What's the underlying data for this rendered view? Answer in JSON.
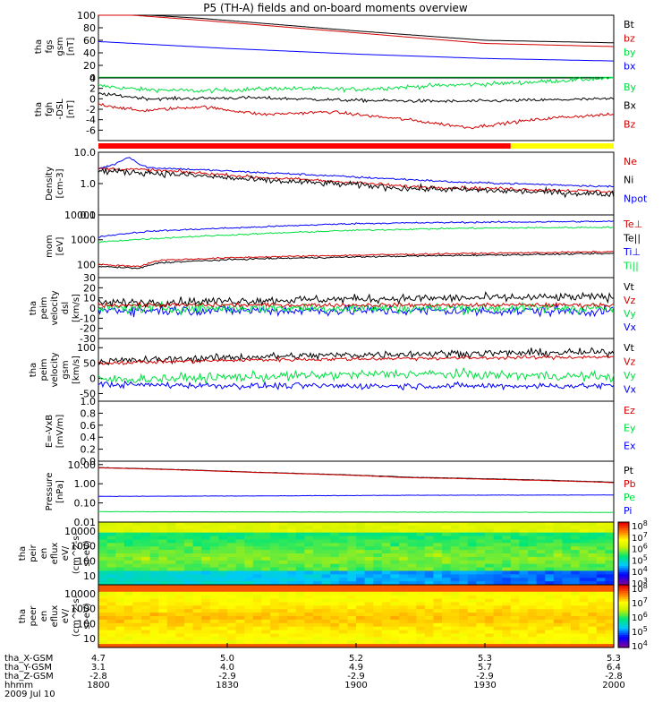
{
  "title": "P5 (TH-A) fields and on-board moments overview",
  "date_label": "2009 Jul 10",
  "colors": {
    "black": "#000000",
    "red": "#d40000",
    "green": "#00e040",
    "blue": "#0000ff",
    "yellow": "#ffff00"
  },
  "chart_data": [
    {
      "id": "fgs",
      "type": "line",
      "ylabel": [
        "tha",
        "fgs",
        "gsm",
        "[nT]"
      ],
      "ylim": [
        0,
        100
      ],
      "ticks": [
        "100",
        "80",
        "60",
        "40",
        "20",
        "0"
      ],
      "tick_values": [
        100,
        80,
        60,
        40,
        20,
        0
      ],
      "legend": [
        {
          "name": "Bt",
          "color": "#000000"
        },
        {
          "name": "bz",
          "color": "#d40000"
        },
        {
          "name": "by",
          "color": "#00e040"
        },
        {
          "name": "bx",
          "color": "#0000ff"
        }
      ],
      "series": [
        {
          "name": "Bt",
          "color": "#000000",
          "x": [
            0,
            0.2,
            0.5,
            0.75,
            1
          ],
          "y": [
            105,
            95,
            75,
            60,
            56
          ],
          "noise": 0
        },
        {
          "name": "bz",
          "color": "#d40000",
          "x": [
            0,
            0.2,
            0.5,
            0.75,
            1
          ],
          "y": [
            104,
            92,
            72,
            55,
            50
          ],
          "noise": 0
        },
        {
          "name": "by",
          "color": "#00e040",
          "x": [
            0,
            1
          ],
          "y": [
            1,
            1
          ],
          "noise": 0
        },
        {
          "name": "bx",
          "color": "#0000ff",
          "x": [
            0,
            0.25,
            0.5,
            0.75,
            1
          ],
          "y": [
            58,
            47,
            38,
            31,
            27
          ],
          "noise": 0
        }
      ]
    },
    {
      "id": "fgh",
      "type": "line",
      "ylabel": [
        "tha",
        "fgh",
        "-DSL",
        "[nT]"
      ],
      "ylim": [
        -8,
        4
      ],
      "ticks": [
        "4",
        "2",
        "0",
        "-2",
        "-4",
        "-6"
      ],
      "tick_values": [
        4,
        2,
        0,
        -2,
        -4,
        -6
      ],
      "legend": [
        {
          "name": "By",
          "color": "#00e040"
        },
        {
          "name": "Bx",
          "color": "#000000"
        },
        {
          "name": "Bz",
          "color": "#d40000"
        }
      ],
      "series": [
        {
          "name": "By",
          "color": "#00e040",
          "x": [
            0,
            0.08,
            0.2,
            0.35,
            0.5,
            0.65,
            0.8,
            1
          ],
          "y": [
            2.5,
            1.8,
            1.5,
            2.0,
            1.8,
            2.5,
            3.0,
            4.0
          ],
          "noise": 0.4
        },
        {
          "name": "Bx",
          "color": "#000000",
          "x": [
            0,
            0.1,
            0.3,
            0.5,
            0.7,
            1
          ],
          "y": [
            1.0,
            0.0,
            0.2,
            -0.3,
            -0.5,
            0.0
          ],
          "noise": 0.3
        },
        {
          "name": "Bz",
          "color": "#d40000",
          "x": [
            0,
            0.08,
            0.2,
            0.32,
            0.45,
            0.6,
            0.72,
            0.82,
            0.9,
            1
          ],
          "y": [
            -1.0,
            -2.3,
            -1.5,
            -3.0,
            -2.5,
            -4.0,
            -5.5,
            -4.3,
            -3.5,
            -3.0
          ],
          "noise": 0.3
        }
      ]
    },
    {
      "id": "density",
      "type": "line",
      "log": true,
      "ylabel": [
        "Density",
        "[cm-3]"
      ],
      "ylim": [
        0.1,
        10
      ],
      "ticks": [
        "10.0",
        "1.0",
        "0.1"
      ],
      "tick_values": [
        10,
        1,
        0.1
      ],
      "legend": [
        {
          "name": "Ne",
          "color": "#d40000"
        },
        {
          "name": "Ni",
          "color": "#000000"
        },
        {
          "name": "Npot",
          "color": "#0000ff"
        }
      ],
      "series": [
        {
          "name": "Npot",
          "color": "#0000ff",
          "x": [
            0,
            0.03,
            0.06,
            0.08,
            0.1,
            0.3,
            0.5,
            0.7,
            1
          ],
          "y": [
            3.0,
            4.0,
            7.0,
            4.0,
            3.2,
            2.3,
            1.6,
            1.1,
            0.8
          ],
          "noise": 0.03
        },
        {
          "name": "Ne",
          "color": "#d40000",
          "x": [
            0,
            0.08,
            0.3,
            0.6,
            1
          ],
          "y": [
            3.0,
            2.8,
            1.6,
            0.8,
            0.55
          ],
          "noise": 0.05
        },
        {
          "name": "Ni",
          "color": "#000000",
          "x": [
            0,
            0.08,
            0.3,
            0.6,
            1
          ],
          "y": [
            2.5,
            2.3,
            1.3,
            0.7,
            0.45
          ],
          "noise": 0.1
        }
      ]
    },
    {
      "id": "temp",
      "type": "line",
      "log": true,
      "ylabel": [
        "mom",
        "[eV]"
      ],
      "ylim": [
        30,
        10000
      ],
      "ticks": [
        "10000",
        "1000",
        "100"
      ],
      "tick_values": [
        10000,
        1000,
        100
      ],
      "legend": [
        {
          "name": "Te⊥",
          "color": "#d40000"
        },
        {
          "name": "Te||",
          "color": "#000000"
        },
        {
          "name": "Ti⊥",
          "color": "#0000ff"
        },
        {
          "name": "Ti||",
          "color": "#00e040"
        }
      ],
      "series": [
        {
          "name": "Ti⊥",
          "color": "#0000ff",
          "x": [
            0,
            0.1,
            0.3,
            0.5,
            0.7,
            1
          ],
          "y": [
            1300,
            2200,
            3200,
            4500,
            5000,
            5500
          ],
          "noise": 0.03
        },
        {
          "name": "Ti||",
          "color": "#00e040",
          "x": [
            0,
            0.1,
            0.3,
            0.5,
            0.7,
            1
          ],
          "y": [
            800,
            1100,
            1700,
            2400,
            2900,
            3200
          ],
          "noise": 0.03
        },
        {
          "name": "Te⊥",
          "color": "#d40000",
          "x": [
            0,
            0.08,
            0.12,
            0.3,
            0.6,
            1
          ],
          "y": [
            100,
            85,
            150,
            200,
            260,
            330
          ],
          "noise": 0.03
        },
        {
          "name": "Te||",
          "color": "#000000",
          "x": [
            0,
            0.08,
            0.12,
            0.3,
            0.6,
            1
          ],
          "y": [
            85,
            70,
            120,
            170,
            220,
            280
          ],
          "noise": 0.03
        }
      ]
    },
    {
      "id": "velocity_dsl",
      "type": "line",
      "ylabel": [
        "tha",
        "peim",
        "velocity",
        "dsl",
        "[km/s]"
      ],
      "ylim": [
        -30,
        30
      ],
      "ticks": [
        "30",
        "20",
        "10",
        "0",
        "-10",
        "-20",
        "-30"
      ],
      "tick_values": [
        30,
        20,
        10,
        0,
        -10,
        -20,
        -30
      ],
      "legend": [
        {
          "name": "Vt",
          "color": "#000000"
        },
        {
          "name": "Vz",
          "color": "#d40000"
        },
        {
          "name": "Vy",
          "color": "#00e040"
        },
        {
          "name": "Vx",
          "color": "#0000ff"
        }
      ],
      "series": [
        {
          "name": "Vx",
          "color": "#0000ff",
          "x": [
            0,
            1
          ],
          "y": [
            -2,
            -3
          ],
          "noise": 5
        },
        {
          "name": "Vy",
          "color": "#00e040",
          "x": [
            0,
            1
          ],
          "y": [
            0,
            0
          ],
          "noise": 5
        },
        {
          "name": "Vt",
          "color": "#000000",
          "x": [
            0,
            0.5,
            1
          ],
          "y": [
            5,
            9,
            11
          ],
          "noise": 4
        },
        {
          "name": "Vz",
          "color": "#d40000",
          "x": [
            0,
            1
          ],
          "y": [
            3,
            3
          ],
          "noise": 2
        }
      ]
    },
    {
      "id": "velocity_gsm",
      "type": "line",
      "ylabel": [
        "tha",
        "peim",
        "velocity",
        "gsm",
        "[km/s]"
      ],
      "ylim": [
        -75,
        130
      ],
      "ticks": [
        "100",
        "50",
        "0",
        "-50"
      ],
      "tick_values": [
        100,
        50,
        0,
        -50
      ],
      "legend": [
        {
          "name": "Vt",
          "color": "#000000"
        },
        {
          "name": "Vz",
          "color": "#d40000"
        },
        {
          "name": "Vy",
          "color": "#00e040"
        },
        {
          "name": "Vx",
          "color": "#0000ff"
        }
      ],
      "series": [
        {
          "name": "Vt",
          "color": "#000000",
          "x": [
            0,
            0.3,
            0.6,
            1
          ],
          "y": [
            55,
            70,
            80,
            85
          ],
          "noise": 12
        },
        {
          "name": "Vz",
          "color": "#d40000",
          "x": [
            0,
            0.3,
            0.6,
            1
          ],
          "y": [
            50,
            60,
            65,
            70
          ],
          "noise": 6
        },
        {
          "name": "Vy",
          "color": "#00e040",
          "x": [
            0,
            0.3,
            0.6,
            1
          ],
          "y": [
            -5,
            5,
            15,
            5
          ],
          "noise": 15
        },
        {
          "name": "Vx",
          "color": "#0000ff",
          "x": [
            0,
            0.3,
            0.6,
            1
          ],
          "y": [
            -20,
            -25,
            -25,
            -25
          ],
          "noise": 10
        }
      ]
    },
    {
      "id": "efield",
      "type": "line",
      "ylabel": [
        "E=-VxB",
        "[mV/m]"
      ],
      "ylim": [
        0,
        1
      ],
      "ticks": [
        "1.0",
        "0.8",
        "0.6",
        "0.4",
        "0.2",
        "0.0",
        "-0.2",
        "-0.4",
        "-0.6",
        "-0.8",
        "-1.0"
      ],
      "tick_values": [
        1,
        0.8,
        0.6,
        0.4,
        0.2,
        0,
        -0.2,
        -0.4,
        -0.6,
        -0.8,
        -1
      ],
      "legend": [
        {
          "name": "Ez",
          "color": "#d40000"
        },
        {
          "name": "Ey",
          "color": "#00e040"
        },
        {
          "name": "Ex",
          "color": "#0000ff"
        }
      ],
      "series": []
    },
    {
      "id": "pressure",
      "type": "line",
      "log": true,
      "ylabel": [
        "Pressure",
        "[nPa]"
      ],
      "ylim": [
        0.01,
        15
      ],
      "ticks": [
        "10.00",
        "1.00",
        "0.10",
        "0.01"
      ],
      "tick_values": [
        10,
        1,
        0.1,
        0.01
      ],
      "legend": [
        {
          "name": "Pt",
          "color": "#000000"
        },
        {
          "name": "Pb",
          "color": "#d40000"
        },
        {
          "name": "Pe",
          "color": "#00e040"
        },
        {
          "name": "Pi",
          "color": "#0000ff"
        }
      ],
      "series": [
        {
          "name": "Pt",
          "color": "#000000",
          "x": [
            0,
            0.3,
            0.6,
            1
          ],
          "y": [
            7.0,
            4.0,
            2.2,
            1.2
          ],
          "noise": 0.01
        },
        {
          "name": "Pb",
          "color": "#d40000",
          "x": [
            0,
            0.3,
            0.6,
            1
          ],
          "y": [
            6.8,
            3.9,
            2.1,
            1.15
          ],
          "noise": 0.01
        },
        {
          "name": "Pi",
          "color": "#0000ff",
          "x": [
            0,
            0.3,
            0.6,
            1
          ],
          "y": [
            0.22,
            0.23,
            0.25,
            0.26
          ],
          "noise": 0.01
        },
        {
          "name": "Pe",
          "color": "#00e040",
          "x": [
            0,
            0.3,
            0.6,
            1
          ],
          "y": [
            0.035,
            0.034,
            0.033,
            0.032
          ],
          "noise": 0.01
        }
      ]
    },
    {
      "id": "peir",
      "type": "heatmap",
      "ylabel": [
        "tha",
        "peir",
        "en",
        "eflux",
        "eV/",
        "(cm^2-s-",
        "sr-eV)"
      ],
      "ticks": [
        "10000",
        "1000",
        "100",
        "10"
      ],
      "colorbar": [
        "10^8",
        "10^7",
        "10^6",
        "10^5",
        "10^4",
        "10^3"
      ]
    },
    {
      "id": "peer",
      "type": "heatmap",
      "ylabel": [
        "tha",
        "peer",
        "en",
        "eflux",
        "eV/",
        "(cm^2-s-",
        "sr-eV)"
      ],
      "ticks": [
        "10000",
        "1000",
        "100",
        "10"
      ],
      "colorbar": [
        "10^8",
        "10^7",
        "10^6",
        "10^5",
        "10^4"
      ]
    }
  ],
  "time_axis": {
    "rows": [
      {
        "label": "tha_X-GSM",
        "values": [
          "4.7",
          "5.0",
          "5.2",
          "5.3",
          "5.3"
        ]
      },
      {
        "label": "tha_Y-GSM",
        "values": [
          "3.1",
          "4.0",
          "4.9",
          "5.7",
          "6.4"
        ]
      },
      {
        "label": "tha_Z-GSM",
        "values": [
          "-2.8",
          "-2.9",
          "-2.9",
          "-2.9",
          "-2.8"
        ]
      },
      {
        "label": "hhmm",
        "values": [
          "1800",
          "1830",
          "1900",
          "1930",
          "2000"
        ]
      }
    ]
  },
  "status_bar": {
    "segments": [
      {
        "color": "#ff0000",
        "from": 0,
        "to": 0.8
      },
      {
        "color": "#ffff00",
        "from": 0.8,
        "to": 1
      }
    ]
  }
}
